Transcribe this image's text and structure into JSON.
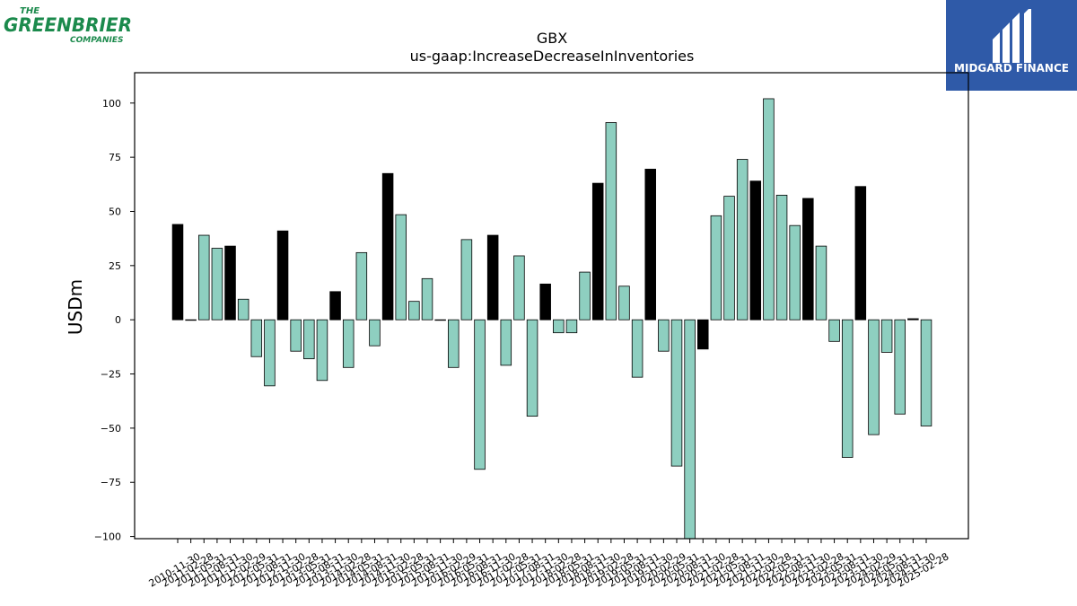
{
  "logos": {
    "left": {
      "line1": "THE",
      "line2": "GREENBRIER",
      "line3": "COMPANIES",
      "color": "#1b8a4c"
    },
    "right": {
      "text": "MIDGARD FINANCE",
      "bg": "#2f5aa8"
    }
  },
  "chart_data": {
    "type": "bar",
    "title": "GBX",
    "subtitle": "us-gaap:IncreaseDecreaseInInventories",
    "ylabel": "USDm",
    "xlabel": "",
    "ylim": [
      -101,
      114
    ],
    "yticks": [
      -100,
      -75,
      -50,
      -25,
      0,
      25,
      50,
      75,
      100
    ],
    "colors": {
      "fy": "#000000",
      "q": "#8ecfc0",
      "edge": "#000000"
    },
    "categories": [
      "2010-11-30",
      "2011-02-28",
      "2011-05-31",
      "2011-08-31",
      "2011-11-30",
      "2012-02-29",
      "2012-05-31",
      "2012-08-31",
      "2012-11-30",
      "2013-02-28",
      "2013-05-31",
      "2013-08-31",
      "2013-11-30",
      "2014-02-28",
      "2014-05-31",
      "2014-08-31",
      "2014-11-30",
      "2015-02-28",
      "2015-05-31",
      "2015-08-31",
      "2015-11-30",
      "2016-02-29",
      "2016-05-31",
      "2016-08-31",
      "2016-11-30",
      "2017-02-28",
      "2017-05-31",
      "2017-08-31",
      "2017-11-30",
      "2018-02-28",
      "2018-05-31",
      "2018-08-31",
      "2018-11-30",
      "2019-02-28",
      "2019-05-31",
      "2019-08-31",
      "2019-11-30",
      "2020-02-29",
      "2020-05-31",
      "2020-08-31",
      "2020-11-30",
      "2021-02-28",
      "2021-05-31",
      "2021-08-31",
      "2021-11-30",
      "2022-02-28",
      "2022-05-31",
      "2022-08-31",
      "2022-11-30",
      "2023-02-28",
      "2023-05-31",
      "2023-08-31",
      "2023-11-30",
      "2024-02-29",
      "2024-05-31",
      "2024-08-31",
      "2024-11-30",
      "2025-02-28"
    ],
    "values": [
      44,
      0,
      39,
      33,
      34,
      9.5,
      -17,
      -30.5,
      41,
      -14.5,
      -18,
      -28,
      13,
      -22,
      31,
      -12,
      67.5,
      48.5,
      8.5,
      19,
      0,
      -22,
      37,
      -69,
      39,
      -21,
      29.5,
      -44.5,
      16.5,
      -6,
      -6,
      22,
      63,
      91,
      15.5,
      -26.5,
      69.5,
      -14.5,
      -67.5,
      -103,
      -13.5,
      48,
      57,
      74,
      64,
      102,
      57.5,
      43.5,
      56,
      34,
      -10,
      -63.5,
      61.5,
      -53,
      -15,
      -43.5,
      0.5,
      -49
    ],
    "fiscal_year_end": [
      true,
      false,
      false,
      false,
      true,
      false,
      false,
      false,
      true,
      false,
      false,
      false,
      true,
      false,
      false,
      false,
      true,
      false,
      false,
      false,
      false,
      false,
      false,
      false,
      true,
      false,
      false,
      false,
      true,
      false,
      false,
      false,
      true,
      false,
      false,
      false,
      true,
      false,
      false,
      false,
      true,
      false,
      false,
      false,
      true,
      false,
      false,
      false,
      true,
      false,
      false,
      false,
      true,
      false,
      false,
      false,
      true,
      false
    ]
  }
}
